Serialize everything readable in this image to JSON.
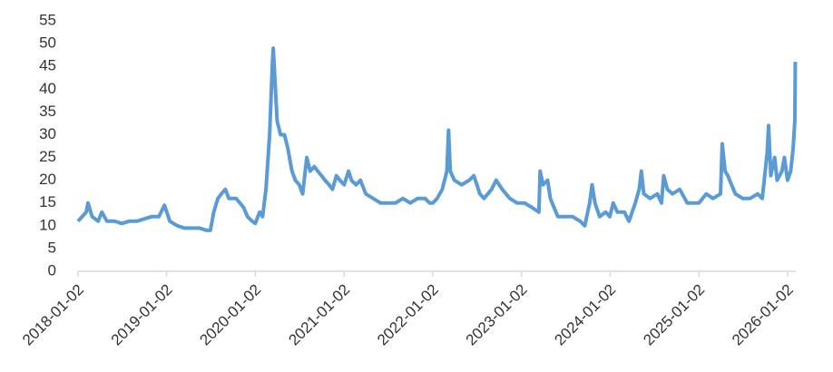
{
  "chart_data": {
    "type": "line",
    "color": "#5b9bd5",
    "x": [
      "2018-01-02",
      "2018-02-05",
      "2018-02-12",
      "2018-03-01",
      "2018-03-26",
      "2018-04-10",
      "2018-05-01",
      "2018-06-01",
      "2018-07-01",
      "2018-08-01",
      "2018-09-01",
      "2018-10-01",
      "2018-11-01",
      "2018-12-01",
      "2018-12-24",
      "2019-01-15",
      "2019-02-15",
      "2019-03-15",
      "2019-04-15",
      "2019-05-15",
      "2019-06-15",
      "2019-07-01",
      "2019-07-15",
      "2019-08-01",
      "2019-08-15",
      "2019-09-01",
      "2019-09-15",
      "2019-10-15",
      "2019-11-15",
      "2019-12-01",
      "2019-12-20",
      "2020-01-02",
      "2020-01-20",
      "2020-02-01",
      "2020-02-15",
      "2020-03-01",
      "2020-03-12",
      "2020-03-16",
      "2020-03-25",
      "2020-04-01",
      "2020-04-15",
      "2020-05-01",
      "2020-05-15",
      "2020-06-01",
      "2020-06-15",
      "2020-07-01",
      "2020-07-15",
      "2020-08-01",
      "2020-08-15",
      "2020-09-01",
      "2020-09-15",
      "2020-10-01",
      "2020-10-15",
      "2020-11-01",
      "2020-11-15",
      "2020-12-01",
      "2020-12-15",
      "2021-01-02",
      "2021-01-20",
      "2021-02-01",
      "2021-02-20",
      "2021-03-10",
      "2021-04-01",
      "2021-05-01",
      "2021-06-01",
      "2021-07-01",
      "2021-08-01",
      "2021-09-01",
      "2021-10-01",
      "2021-11-01",
      "2021-12-01",
      "2021-12-20",
      "2022-01-02",
      "2022-01-20",
      "2022-02-10",
      "2022-03-01",
      "2022-03-08",
      "2022-03-15",
      "2022-04-01",
      "2022-05-01",
      "2022-06-01",
      "2022-06-20",
      "2022-07-15",
      "2022-08-01",
      "2022-09-01",
      "2022-09-20",
      "2022-10-15",
      "2022-11-15",
      "2022-12-15",
      "2023-01-15",
      "2023-02-15",
      "2023-03-15",
      "2023-03-20",
      "2023-04-01",
      "2023-04-20",
      "2023-05-01",
      "2023-06-01",
      "2023-07-01",
      "2023-08-01",
      "2023-09-01",
      "2023-09-20",
      "2023-10-10",
      "2023-10-20",
      "2023-11-01",
      "2023-11-20",
      "2023-12-15",
      "2024-01-01",
      "2024-01-15",
      "2024-02-01",
      "2024-03-01",
      "2024-03-20",
      "2024-04-15",
      "2024-05-01",
      "2024-05-10",
      "2024-05-20",
      "2024-06-15",
      "2024-07-15",
      "2024-08-01",
      "2024-08-10",
      "2024-08-25",
      "2024-09-15",
      "2024-10-15",
      "2024-11-15",
      "2024-12-15",
      "2025-01-02",
      "2025-02-01",
      "2025-03-01",
      "2025-04-01",
      "2025-04-08",
      "2025-04-20",
      "2025-05-01",
      "2025-06-01",
      "2025-07-01",
      "2025-08-01",
      "2025-09-01",
      "2025-09-20",
      "2025-10-10",
      "2025-10-16",
      "2025-10-25",
      "2025-11-10",
      "2025-11-20",
      "2025-12-10",
      "2025-12-20",
      "2026-01-02",
      "2026-01-15",
      "2026-01-25",
      "2026-02-01",
      "2026-02-03"
    ],
    "values": [
      11,
      13,
      15,
      12,
      11,
      13,
      11,
      11,
      10.5,
      11,
      11,
      11.5,
      12,
      12,
      14.5,
      11,
      10,
      9.5,
      9.5,
      9.5,
      9,
      9,
      13,
      16,
      17,
      18,
      16,
      16,
      14,
      12,
      11,
      10.5,
      13,
      12,
      18,
      30,
      45,
      49,
      40,
      33,
      30,
      30,
      27,
      22,
      20,
      19,
      17,
      25,
      22,
      23,
      22,
      21,
      20,
      19,
      18,
      21,
      20,
      19,
      22,
      20,
      19,
      20,
      17,
      16,
      15,
      15,
      15,
      16,
      15,
      16,
      16,
      15,
      15,
      16,
      18,
      22,
      31,
      22,
      20,
      19,
      20,
      21,
      17,
      16,
      18,
      20,
      18,
      16,
      15,
      15,
      14,
      13,
      22,
      19,
      20,
      16,
      12,
      12,
      12,
      11,
      10,
      15,
      19,
      15,
      12,
      13,
      12,
      15,
      13,
      13,
      11,
      15,
      18,
      22,
      17,
      16,
      17,
      15,
      21,
      18,
      17,
      18,
      15,
      15,
      15,
      17,
      16,
      17,
      28,
      22,
      21,
      17,
      16,
      16,
      17,
      16,
      26,
      32,
      21,
      25,
      20,
      22,
      25,
      20,
      22,
      27,
      33,
      46
    ],
    "xlim": [
      "2018-01-02",
      "2026-02-05"
    ],
    "xticks": [
      "2018-01-02",
      "2019-01-02",
      "2020-01-02",
      "2021-01-02",
      "2022-01-02",
      "2023-01-02",
      "2024-01-02",
      "2025-01-02",
      "2026-01-02"
    ],
    "ylim": [
      0,
      55
    ],
    "yticks": [
      0,
      5,
      10,
      15,
      20,
      25,
      30,
      35,
      40,
      45,
      50,
      55
    ]
  }
}
